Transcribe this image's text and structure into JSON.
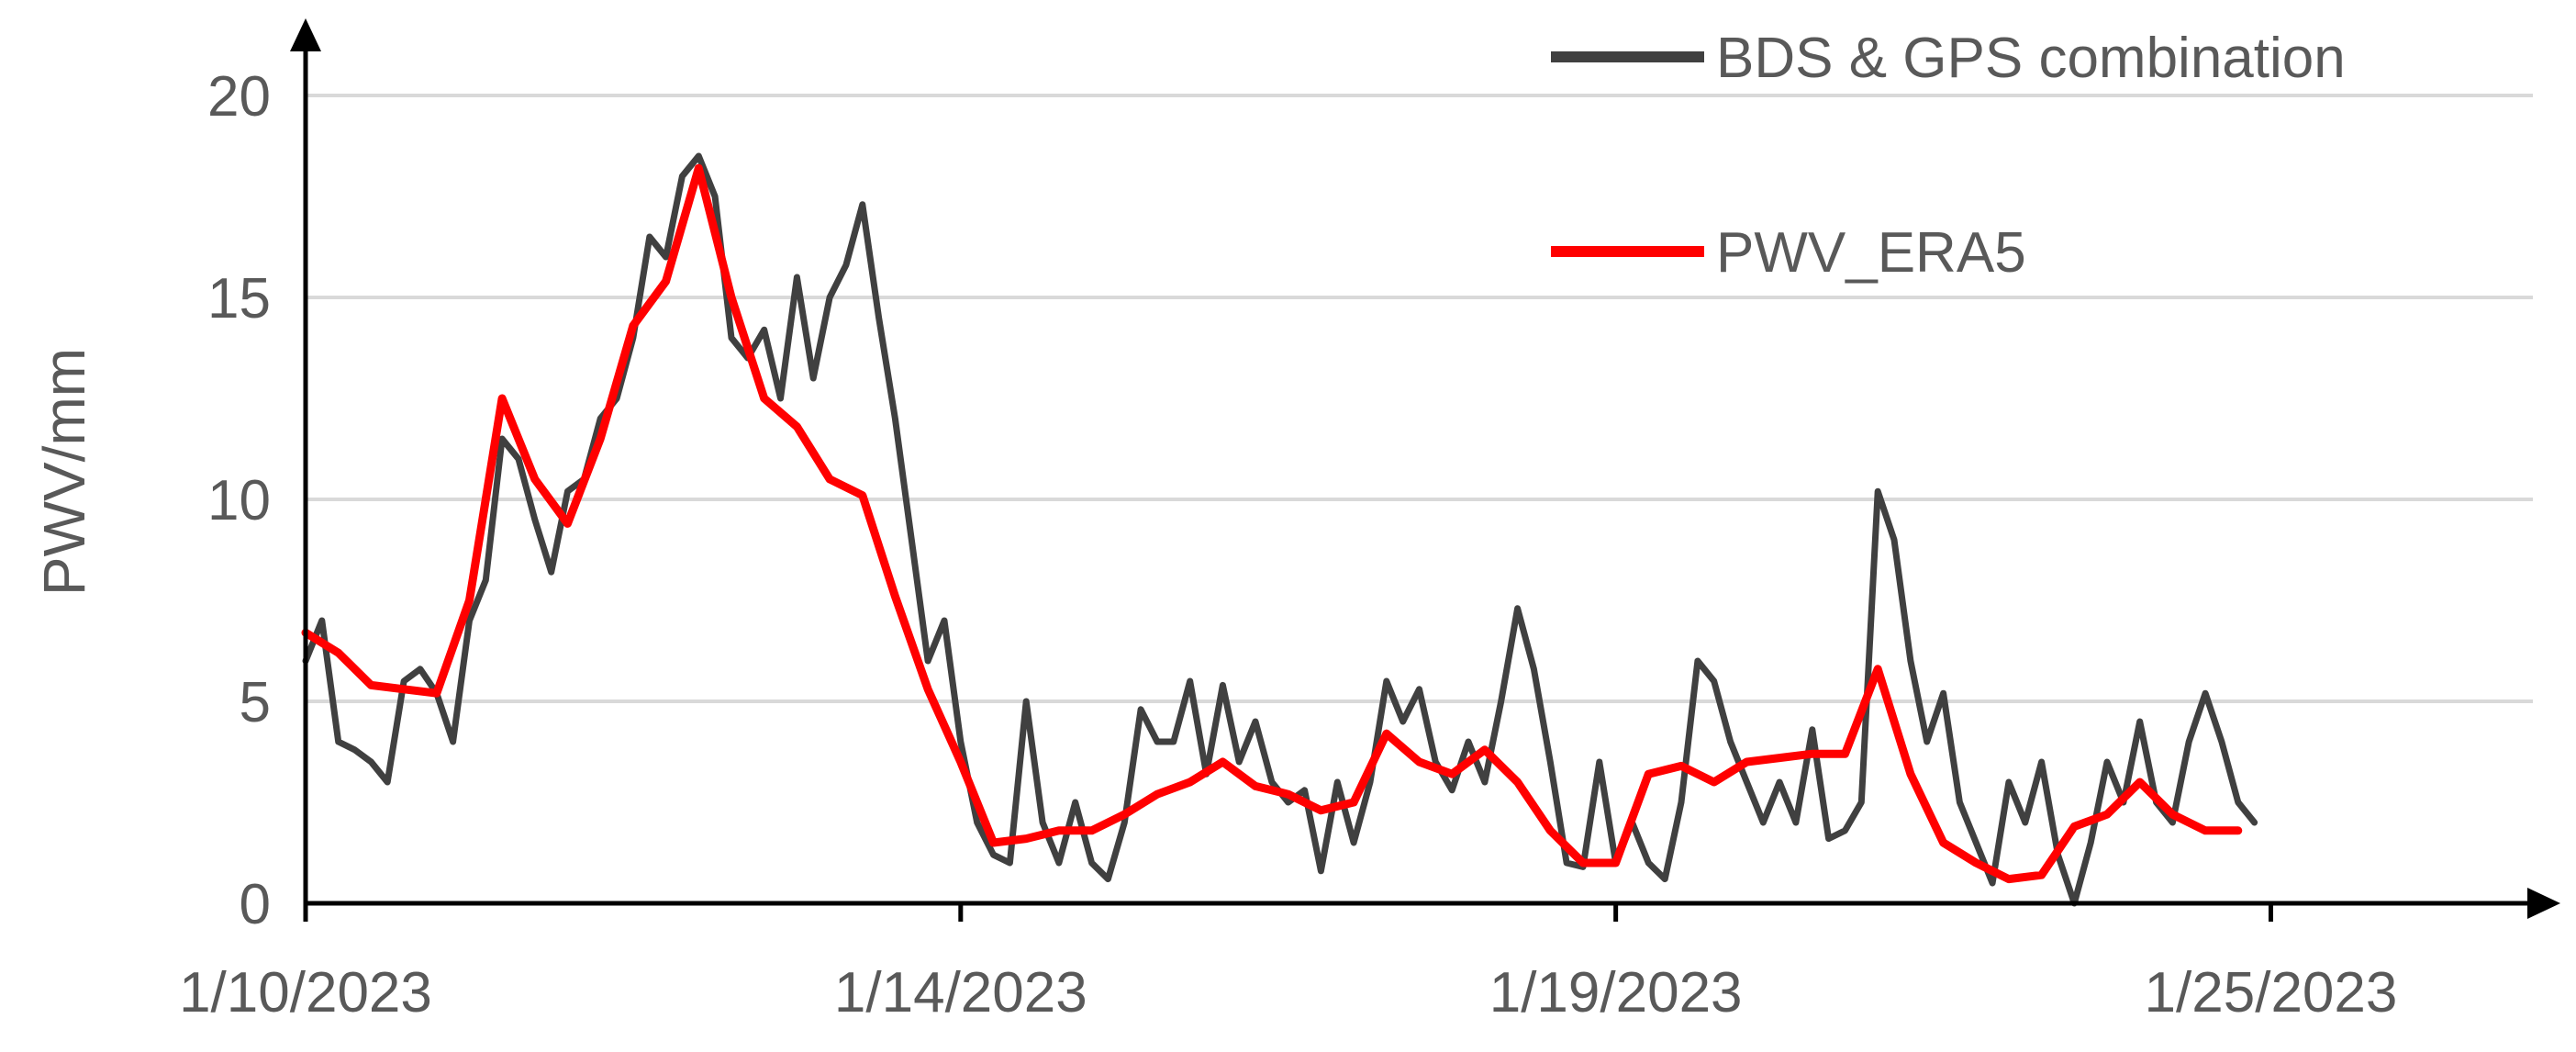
{
  "chart_data": {
    "type": "line",
    "title": "",
    "xlabel": "",
    "ylabel": "PWV/mm",
    "xlim": [
      "2023-01-10",
      "2023-01-27"
    ],
    "ylim": [
      0,
      20
    ],
    "y_ticks": [
      "0",
      "5",
      "10",
      "15",
      "20"
    ],
    "x_ticks": [
      {
        "label": "1/10/2023",
        "date": "2023-01-10"
      },
      {
        "label": "1/14/2023",
        "date": "2023-01-15"
      },
      {
        "label": "1/19/2023",
        "date": "2023-01-20"
      },
      {
        "label": "1/25/2023",
        "date": "2023-01-25"
      }
    ],
    "grid": true,
    "legend_position": "top-right",
    "series": [
      {
        "name": "BDS & GPS combination",
        "color": "#404040",
        "points": [
          [
            "2023-01-10 00:00",
            6.0
          ],
          [
            "2023-01-10 03:00",
            7.0
          ],
          [
            "2023-01-10 06:00",
            4.0
          ],
          [
            "2023-01-10 09:00",
            3.8
          ],
          [
            "2023-01-10 12:00",
            3.5
          ],
          [
            "2023-01-10 15:00",
            3.0
          ],
          [
            "2023-01-10 18:00",
            5.5
          ],
          [
            "2023-01-10 21:00",
            5.8
          ],
          [
            "2023-01-11 00:00",
            5.2
          ],
          [
            "2023-01-11 03:00",
            4.0
          ],
          [
            "2023-01-11 06:00",
            7.0
          ],
          [
            "2023-01-11 09:00",
            8.0
          ],
          [
            "2023-01-11 12:00",
            11.5
          ],
          [
            "2023-01-11 15:00",
            11.0
          ],
          [
            "2023-01-11 18:00",
            9.5
          ],
          [
            "2023-01-11 21:00",
            8.2
          ],
          [
            "2023-01-12 00:00",
            10.2
          ],
          [
            "2023-01-12 03:00",
            10.5
          ],
          [
            "2023-01-12 06:00",
            12.0
          ],
          [
            "2023-01-12 09:00",
            12.5
          ],
          [
            "2023-01-12 12:00",
            14.0
          ],
          [
            "2023-01-12 15:00",
            16.5
          ],
          [
            "2023-01-12 18:00",
            16.0
          ],
          [
            "2023-01-12 21:00",
            18.0
          ],
          [
            "2023-01-13 00:00",
            18.5
          ],
          [
            "2023-01-13 03:00",
            17.5
          ],
          [
            "2023-01-13 06:00",
            14.0
          ],
          [
            "2023-01-13 09:00",
            13.5
          ],
          [
            "2023-01-13 12:00",
            14.2
          ],
          [
            "2023-01-13 15:00",
            12.5
          ],
          [
            "2023-01-13 18:00",
            15.5
          ],
          [
            "2023-01-13 21:00",
            13.0
          ],
          [
            "2023-01-14 00:00",
            15.0
          ],
          [
            "2023-01-14 03:00",
            15.8
          ],
          [
            "2023-01-14 06:00",
            17.3
          ],
          [
            "2023-01-14 09:00",
            14.5
          ],
          [
            "2023-01-14 12:00",
            12.0
          ],
          [
            "2023-01-14 15:00",
            9.0
          ],
          [
            "2023-01-14 18:00",
            6.0
          ],
          [
            "2023-01-14 21:00",
            7.0
          ],
          [
            "2023-01-15 00:00",
            4.0
          ],
          [
            "2023-01-15 03:00",
            2.0
          ],
          [
            "2023-01-15 06:00",
            1.2
          ],
          [
            "2023-01-15 09:00",
            1.0
          ],
          [
            "2023-01-15 12:00",
            5.0
          ],
          [
            "2023-01-15 15:00",
            2.0
          ],
          [
            "2023-01-15 18:00",
            1.0
          ],
          [
            "2023-01-15 21:00",
            2.5
          ],
          [
            "2023-01-16 00:00",
            1.0
          ],
          [
            "2023-01-16 03:00",
            0.6
          ],
          [
            "2023-01-16 06:00",
            2.0
          ],
          [
            "2023-01-16 09:00",
            4.8
          ],
          [
            "2023-01-16 12:00",
            4.0
          ],
          [
            "2023-01-16 15:00",
            4.0
          ],
          [
            "2023-01-16 18:00",
            5.5
          ],
          [
            "2023-01-16 21:00",
            3.2
          ],
          [
            "2023-01-17 00:00",
            5.4
          ],
          [
            "2023-01-17 03:00",
            3.5
          ],
          [
            "2023-01-17 06:00",
            4.5
          ],
          [
            "2023-01-17 09:00",
            3.0
          ],
          [
            "2023-01-17 12:00",
            2.5
          ],
          [
            "2023-01-17 15:00",
            2.8
          ],
          [
            "2023-01-17 18:00",
            0.8
          ],
          [
            "2023-01-17 21:00",
            3.0
          ],
          [
            "2023-01-18 00:00",
            1.5
          ],
          [
            "2023-01-18 03:00",
            3.0
          ],
          [
            "2023-01-18 06:00",
            5.5
          ],
          [
            "2023-01-18 09:00",
            4.5
          ],
          [
            "2023-01-18 12:00",
            5.3
          ],
          [
            "2023-01-18 15:00",
            3.5
          ],
          [
            "2023-01-18 18:00",
            2.8
          ],
          [
            "2023-01-18 21:00",
            4.0
          ],
          [
            "2023-01-19 00:00",
            3.0
          ],
          [
            "2023-01-19 03:00",
            5.0
          ],
          [
            "2023-01-19 06:00",
            7.3
          ],
          [
            "2023-01-19 09:00",
            5.8
          ],
          [
            "2023-01-19 12:00",
            3.5
          ],
          [
            "2023-01-19 15:00",
            1.0
          ],
          [
            "2023-01-19 18:00",
            0.9
          ],
          [
            "2023-01-19 21:00",
            3.5
          ],
          [
            "2023-01-20 00:00",
            1.0
          ],
          [
            "2023-01-20 03:00",
            2.0
          ],
          [
            "2023-01-20 06:00",
            1.0
          ],
          [
            "2023-01-20 09:00",
            0.6
          ],
          [
            "2023-01-20 12:00",
            2.5
          ],
          [
            "2023-01-20 15:00",
            6.0
          ],
          [
            "2023-01-20 18:00",
            5.5
          ],
          [
            "2023-01-20 21:00",
            4.0
          ],
          [
            "2023-01-21 00:00",
            3.0
          ],
          [
            "2023-01-21 03:00",
            2.0
          ],
          [
            "2023-01-21 06:00",
            3.0
          ],
          [
            "2023-01-21 09:00",
            2.0
          ],
          [
            "2023-01-21 12:00",
            4.3
          ],
          [
            "2023-01-21 15:00",
            1.6
          ],
          [
            "2023-01-21 18:00",
            1.8
          ],
          [
            "2023-01-21 21:00",
            2.5
          ],
          [
            "2023-01-22 00:00",
            10.2
          ],
          [
            "2023-01-22 03:00",
            9.0
          ],
          [
            "2023-01-22 06:00",
            6.0
          ],
          [
            "2023-01-22 09:00",
            4.0
          ],
          [
            "2023-01-22 12:00",
            5.2
          ],
          [
            "2023-01-22 15:00",
            2.5
          ],
          [
            "2023-01-22 18:00",
            1.5
          ],
          [
            "2023-01-22 21:00",
            0.5
          ],
          [
            "2023-01-23 00:00",
            3.0
          ],
          [
            "2023-01-23 03:00",
            2.0
          ],
          [
            "2023-01-23 06:00",
            3.5
          ],
          [
            "2023-01-23 09:00",
            1.2
          ],
          [
            "2023-01-23 12:00",
            0.0
          ],
          [
            "2023-01-23 15:00",
            1.5
          ],
          [
            "2023-01-23 18:00",
            3.5
          ],
          [
            "2023-01-23 21:00",
            2.5
          ],
          [
            "2023-01-24 00:00",
            4.5
          ],
          [
            "2023-01-24 03:00",
            2.5
          ],
          [
            "2023-01-24 06:00",
            2.0
          ],
          [
            "2023-01-24 09:00",
            4.0
          ],
          [
            "2023-01-24 12:00",
            5.2
          ],
          [
            "2023-01-24 15:00",
            4.0
          ],
          [
            "2023-01-24 18:00",
            2.5
          ],
          [
            "2023-01-24 21:00",
            2.0
          ]
        ]
      },
      {
        "name": "PWV_ERA5",
        "color": "#ff0000",
        "points": [
          [
            "2023-01-10 00:00",
            6.7
          ],
          [
            "2023-01-10 06:00",
            6.2
          ],
          [
            "2023-01-10 12:00",
            5.4
          ],
          [
            "2023-01-10 18:00",
            5.3
          ],
          [
            "2023-01-11 00:00",
            5.2
          ],
          [
            "2023-01-11 06:00",
            7.5
          ],
          [
            "2023-01-11 12:00",
            12.5
          ],
          [
            "2023-01-11 18:00",
            10.5
          ],
          [
            "2023-01-12 00:00",
            9.4
          ],
          [
            "2023-01-12 06:00",
            11.5
          ],
          [
            "2023-01-12 12:00",
            14.3
          ],
          [
            "2023-01-12 18:00",
            15.4
          ],
          [
            "2023-01-13 00:00",
            18.2
          ],
          [
            "2023-01-13 06:00",
            15.0
          ],
          [
            "2023-01-13 12:00",
            12.5
          ],
          [
            "2023-01-13 18:00",
            11.8
          ],
          [
            "2023-01-14 00:00",
            10.5
          ],
          [
            "2023-01-14 06:00",
            10.1
          ],
          [
            "2023-01-14 12:00",
            7.6
          ],
          [
            "2023-01-14 18:00",
            5.3
          ],
          [
            "2023-01-15 00:00",
            3.5
          ],
          [
            "2023-01-15 06:00",
            1.5
          ],
          [
            "2023-01-15 12:00",
            1.6
          ],
          [
            "2023-01-15 18:00",
            1.8
          ],
          [
            "2023-01-16 00:00",
            1.8
          ],
          [
            "2023-01-16 06:00",
            2.2
          ],
          [
            "2023-01-16 12:00",
            2.7
          ],
          [
            "2023-01-16 18:00",
            3.0
          ],
          [
            "2023-01-17 00:00",
            3.5
          ],
          [
            "2023-01-17 06:00",
            2.9
          ],
          [
            "2023-01-17 12:00",
            2.7
          ],
          [
            "2023-01-17 18:00",
            2.3
          ],
          [
            "2023-01-18 00:00",
            2.5
          ],
          [
            "2023-01-18 06:00",
            4.2
          ],
          [
            "2023-01-18 12:00",
            3.5
          ],
          [
            "2023-01-18 18:00",
            3.2
          ],
          [
            "2023-01-19 00:00",
            3.8
          ],
          [
            "2023-01-19 06:00",
            3.0
          ],
          [
            "2023-01-19 12:00",
            1.8
          ],
          [
            "2023-01-19 18:00",
            1.0
          ],
          [
            "2023-01-20 00:00",
            1.0
          ],
          [
            "2023-01-20 06:00",
            3.2
          ],
          [
            "2023-01-20 12:00",
            3.4
          ],
          [
            "2023-01-20 18:00",
            3.0
          ],
          [
            "2023-01-21 00:00",
            3.5
          ],
          [
            "2023-01-21 06:00",
            3.6
          ],
          [
            "2023-01-21 12:00",
            3.7
          ],
          [
            "2023-01-21 18:00",
            3.7
          ],
          [
            "2023-01-22 00:00",
            5.8
          ],
          [
            "2023-01-22 06:00",
            3.2
          ],
          [
            "2023-01-22 12:00",
            1.5
          ],
          [
            "2023-01-22 18:00",
            1.0
          ],
          [
            "2023-01-23 00:00",
            0.6
          ],
          [
            "2023-01-23 06:00",
            0.7
          ],
          [
            "2023-01-23 12:00",
            1.9
          ],
          [
            "2023-01-23 18:00",
            2.2
          ],
          [
            "2023-01-24 00:00",
            3.0
          ],
          [
            "2023-01-24 06:00",
            2.2
          ],
          [
            "2023-01-24 12:00",
            1.8
          ],
          [
            "2023-01-24 18:00",
            1.8
          ]
        ]
      }
    ]
  }
}
